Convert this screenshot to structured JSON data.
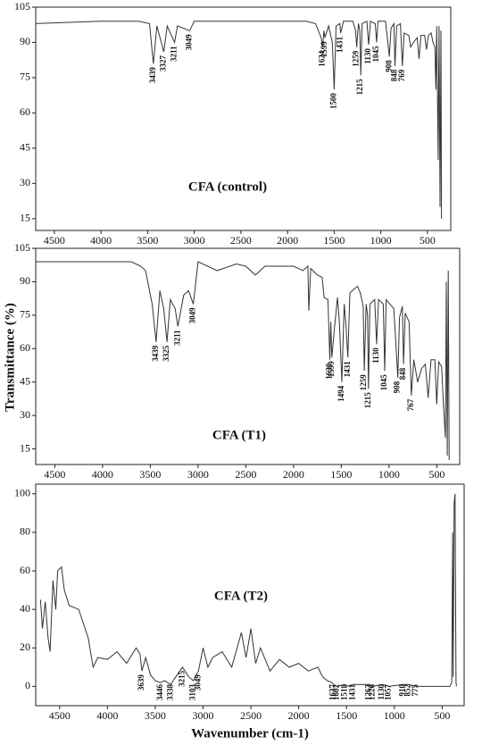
{
  "chart_data": [
    {
      "type": "line",
      "title": "CFA (control)",
      "color": "#333333",
      "x": [
        4700,
        4000,
        3600,
        3480,
        3439,
        3400,
        3327,
        3290,
        3211,
        3180,
        3049,
        3000,
        2500,
        2000,
        1800,
        1700,
        1640,
        1624,
        1610,
        1599,
        1560,
        1520,
        1500,
        1480,
        1440,
        1431,
        1400,
        1300,
        1270,
        1259,
        1240,
        1225,
        1215,
        1200,
        1150,
        1130,
        1110,
        1060,
        1045,
        1030,
        950,
        908,
        890,
        860,
        848,
        830,
        790,
        769,
        750,
        700,
        680,
        650,
        610,
        590,
        570,
        530,
        510,
        490,
        460,
        440,
        420,
        410,
        400,
        385,
        375,
        365,
        355,
        350
      ],
      "values": [
        98,
        99,
        99,
        98,
        81,
        97,
        86,
        97,
        90,
        97,
        95,
        99,
        99,
        99,
        99,
        98,
        92,
        88,
        95,
        92,
        97,
        90,
        70,
        97,
        98,
        94,
        99,
        99,
        95,
        88,
        98,
        95,
        76,
        98,
        99,
        89,
        99,
        98,
        90,
        99,
        99,
        84,
        96,
        98,
        80,
        97,
        98,
        80,
        94,
        93,
        88,
        90,
        92,
        83,
        93,
        93,
        87,
        93,
        94,
        90,
        88,
        70,
        97,
        40,
        97,
        20,
        95,
        15
      ],
      "peak_labels": [
        3439,
        3327,
        3211,
        3049,
        1624,
        1599,
        1500,
        1431,
        1259,
        1215,
        1130,
        1045,
        908,
        848,
        769
      ],
      "xlim": [
        4700,
        250
      ],
      "xticks": [
        4500,
        4000,
        3500,
        3000,
        2500,
        2000,
        1500,
        1000,
        500
      ],
      "ylim": [
        10,
        105
      ],
      "yticks": [
        15,
        30,
        45,
        60,
        75,
        90,
        105
      ]
    },
    {
      "type": "line",
      "title": "CFA (T1)",
      "ylabel": "Transmittance (%)",
      "color": "#333333",
      "x": [
        4700,
        4000,
        3700,
        3600,
        3550,
        3480,
        3439,
        3400,
        3360,
        3325,
        3290,
        3240,
        3211,
        3150,
        3100,
        3049,
        3000,
        2800,
        2600,
        2500,
        2400,
        2300,
        2000,
        1900,
        1850,
        1840,
        1820,
        1750,
        1700,
        1680,
        1640,
        1620,
        1610,
        1599,
        1570,
        1540,
        1520,
        1494,
        1470,
        1450,
        1431,
        1410,
        1330,
        1300,
        1270,
        1259,
        1240,
        1225,
        1215,
        1200,
        1150,
        1130,
        1110,
        1060,
        1045,
        1030,
        950,
        908,
        890,
        860,
        848,
        830,
        790,
        767,
        740,
        700,
        660,
        620,
        590,
        560,
        520,
        500,
        480,
        450,
        430,
        410,
        400,
        390,
        380,
        370
      ],
      "values": [
        99,
        99,
        99,
        97,
        95,
        80,
        63,
        86,
        78,
        63,
        82,
        78,
        70,
        84,
        86,
        80,
        99,
        95,
        98,
        97,
        93,
        97,
        97,
        95,
        97,
        77,
        96,
        93,
        92,
        83,
        82,
        55,
        72,
        56,
        70,
        83,
        72,
        45,
        80,
        70,
        56,
        85,
        88,
        85,
        79,
        50,
        80,
        75,
        42,
        80,
        82,
        62,
        82,
        80,
        50,
        82,
        78,
        47,
        74,
        79,
        53,
        76,
        72,
        39,
        55,
        45,
        51,
        53,
        38,
        55,
        55,
        35,
        54,
        52,
        35,
        20,
        90,
        12,
        95,
        10
      ],
      "peak_labels": [
        3439,
        3325,
        3211,
        3049,
        1620,
        1599,
        1494,
        1431,
        1259,
        1215,
        1130,
        1045,
        908,
        848,
        767
      ],
      "xlim": [
        4700,
        260
      ],
      "xticks": [
        4500,
        4000,
        3500,
        3000,
        2500,
        2000,
        1500,
        1000,
        500
      ],
      "ylim": [
        8,
        105
      ],
      "yticks": [
        15,
        30,
        45,
        60,
        75,
        90,
        105
      ]
    },
    {
      "type": "line",
      "title": "CFA (T2)",
      "xlabel": "Wavenumber (cm-1)",
      "color": "#333333",
      "x": [
        4700,
        4680,
        4650,
        4620,
        4600,
        4570,
        4540,
        4520,
        4480,
        4450,
        4400,
        4300,
        4200,
        4150,
        4100,
        4000,
        3900,
        3800,
        3700,
        3660,
        3639,
        3600,
        3550,
        3500,
        3446,
        3400,
        3338,
        3300,
        3215,
        3150,
        3103,
        3049,
        3000,
        2950,
        2900,
        2800,
        2700,
        2600,
        2550,
        2500,
        2450,
        2400,
        2300,
        2200,
        2100,
        2000,
        1900,
        1800,
        1750,
        1700,
        1650,
        1637,
        1602,
        1518,
        1500,
        1431,
        1263,
        1226,
        1130,
        1057,
        910,
        852,
        775,
        600,
        500,
        420,
        400,
        390,
        385,
        375,
        365,
        355,
        350
      ],
      "values": [
        45,
        30,
        44,
        25,
        18,
        55,
        40,
        60,
        62,
        50,
        42,
        40,
        25,
        10,
        15,
        14,
        18,
        12,
        20,
        17,
        8,
        15,
        6,
        3,
        2,
        3,
        1,
        4,
        10,
        5,
        3,
        8,
        20,
        10,
        15,
        18,
        10,
        28,
        15,
        30,
        12,
        20,
        8,
        14,
        10,
        12,
        8,
        10,
        5,
        3,
        2,
        1,
        0,
        1,
        0,
        1,
        1,
        0,
        1,
        0,
        1,
        1,
        0,
        0,
        0,
        0,
        2,
        80,
        5,
        95,
        100,
        2,
        0
      ],
      "peak_labels": [
        3639,
        3446,
        3338,
        3215,
        3103,
        3049,
        1637,
        1602,
        1518,
        1431,
        1263,
        1226,
        1130,
        1057,
        910,
        852,
        775
      ],
      "xlim": [
        4750,
        270
      ],
      "xticks": [
        4500,
        4000,
        3500,
        3000,
        2500,
        2000,
        1500,
        1000,
        500
      ],
      "ylim": [
        -10,
        105
      ],
      "yticks": [
        0,
        20,
        40,
        60,
        80,
        100
      ]
    }
  ]
}
